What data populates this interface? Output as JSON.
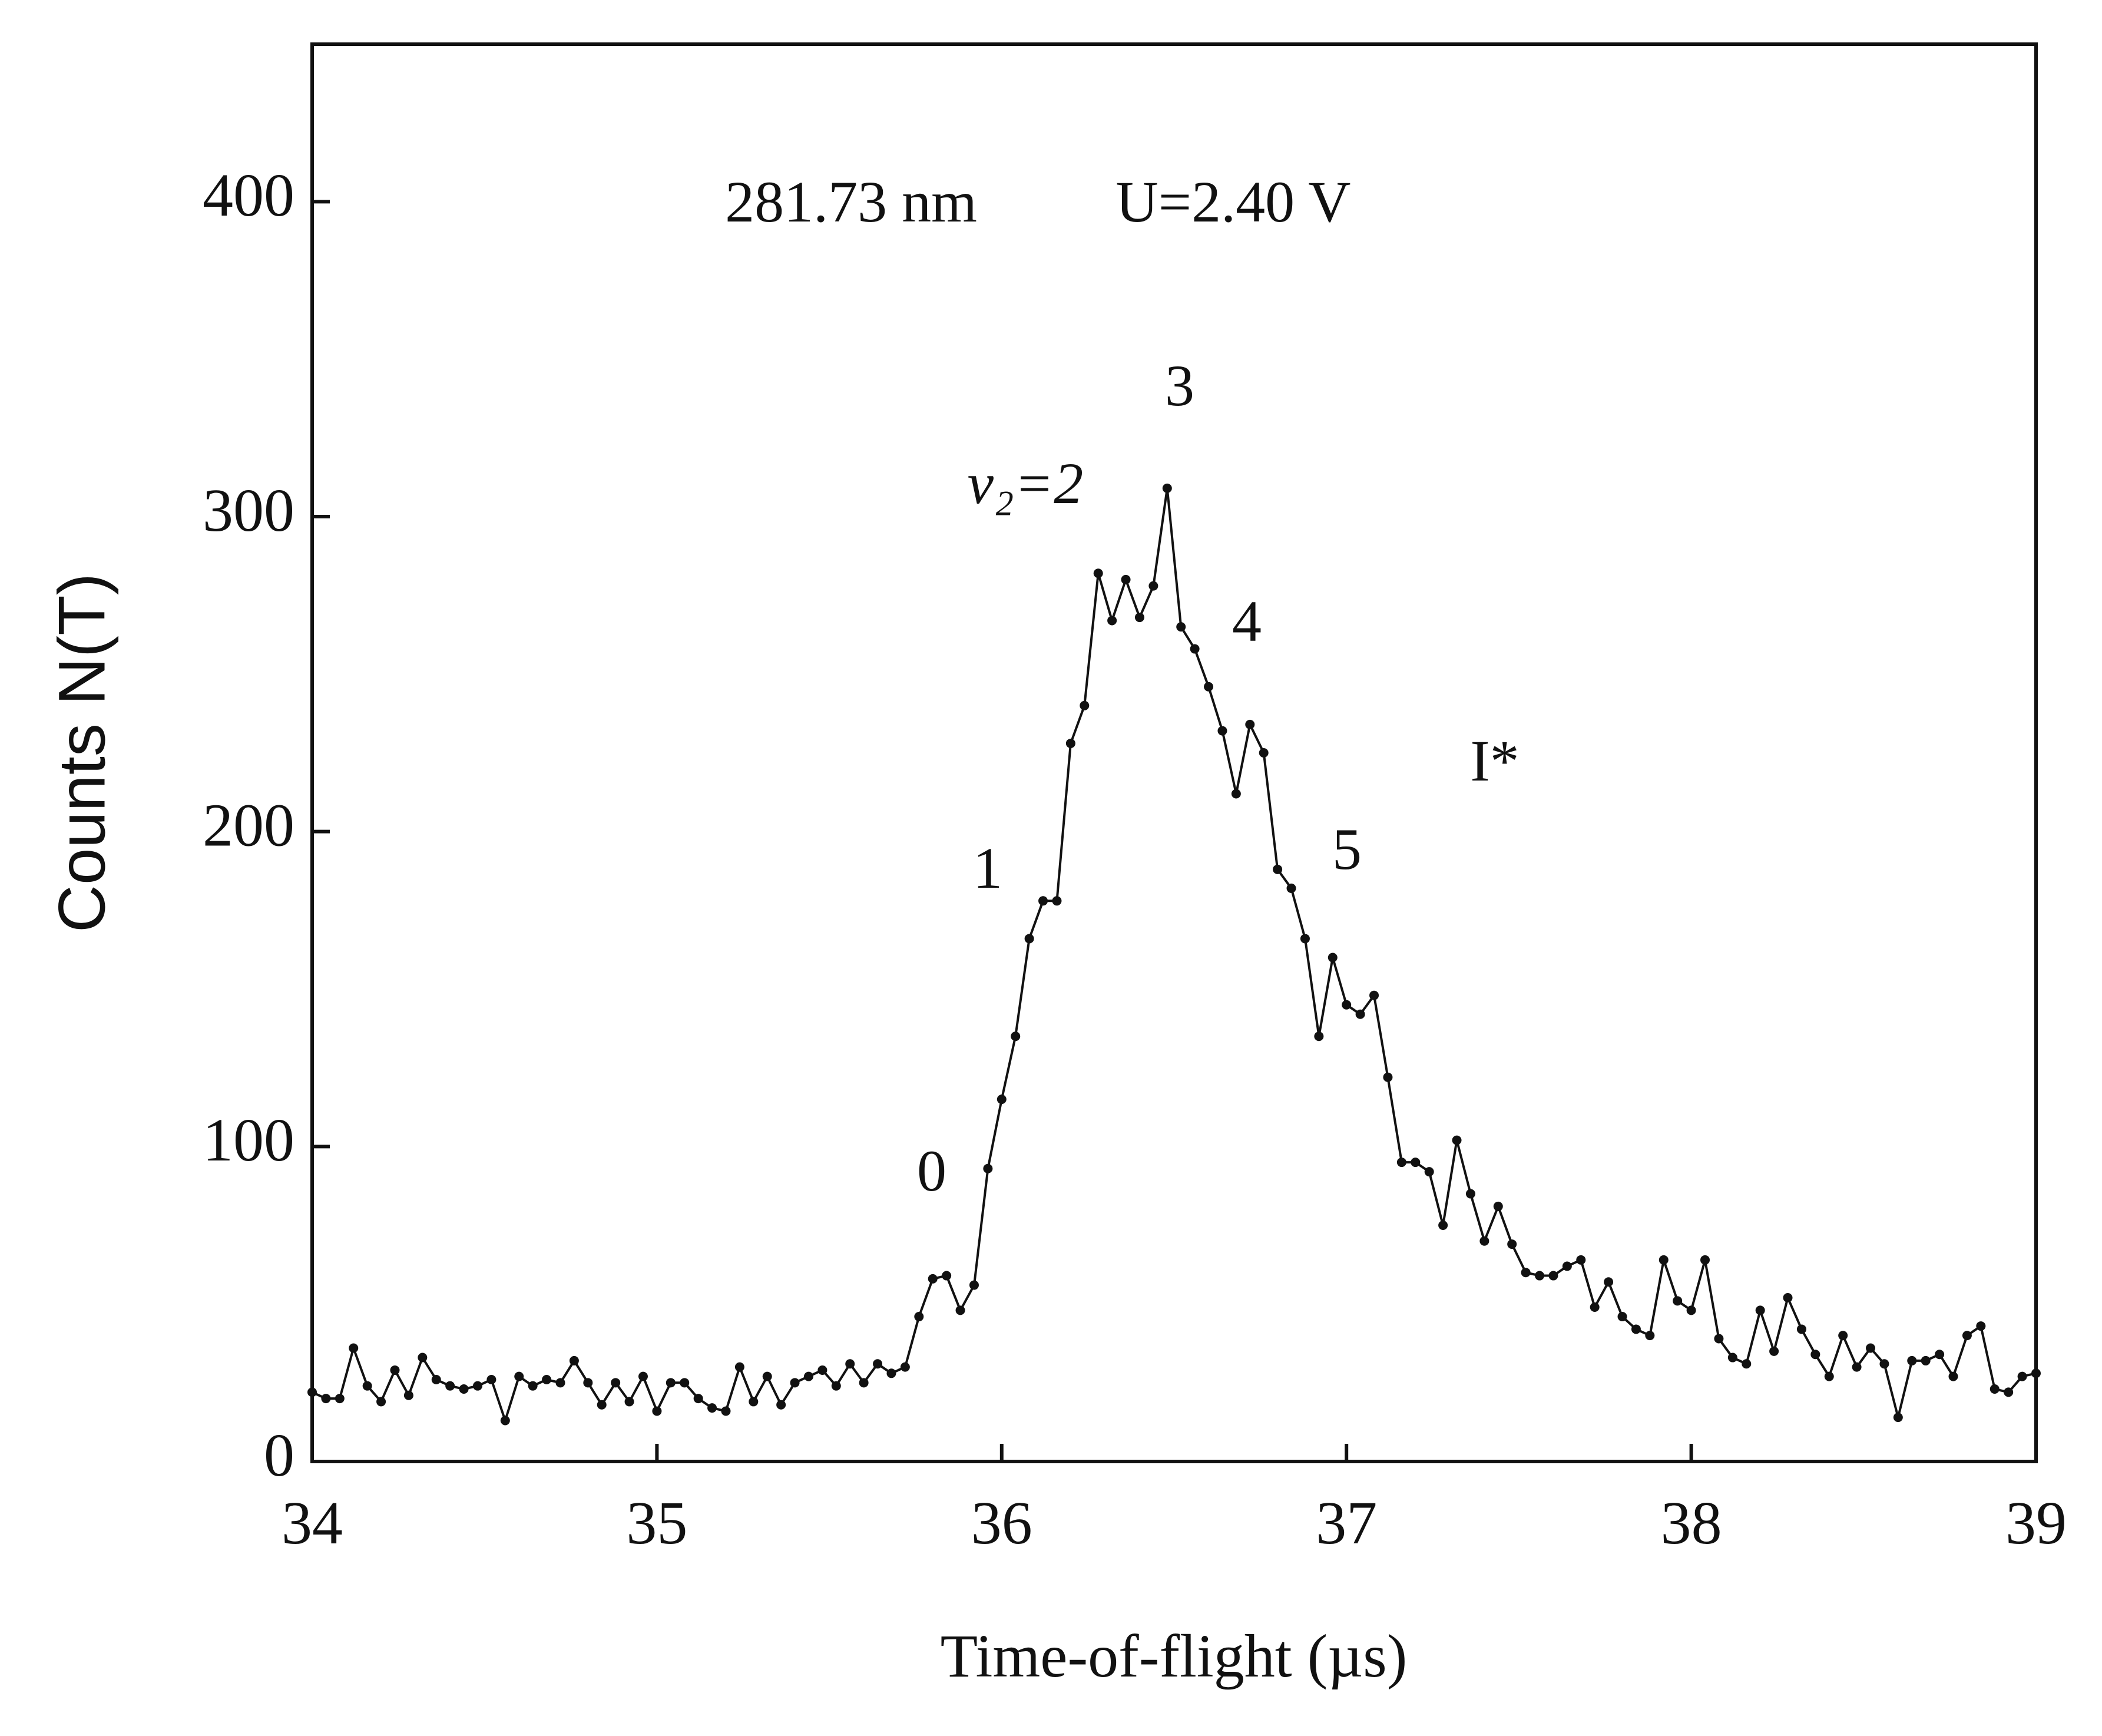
{
  "chart_data": {
    "type": "line",
    "xlabel": "Time-of-flight (µs)",
    "ylabel": "Counts  N(T)",
    "xlim": [
      34,
      39
    ],
    "ylim": [
      0,
      450
    ],
    "xticks": [
      34,
      35,
      36,
      37,
      38,
      39
    ],
    "yticks": [
      0,
      100,
      200,
      300,
      400
    ],
    "color": "#111111",
    "annotations": [
      "281.73 nm",
      "U=2.40 V",
      "v₂=2",
      "0",
      "1",
      "3",
      "4",
      "5",
      "I*"
    ],
    "x": [
      34.0,
      34.04,
      34.08,
      34.12,
      34.16,
      34.2,
      34.24,
      34.28,
      34.32,
      34.36,
      34.4,
      34.44,
      34.48,
      34.52,
      34.56,
      34.6,
      34.64,
      34.68,
      34.72,
      34.76,
      34.8,
      34.84,
      34.88,
      34.92,
      34.96,
      35.0,
      35.04,
      35.08,
      35.12,
      35.16,
      35.2,
      35.24,
      35.28,
      35.32,
      35.36,
      35.4,
      35.44,
      35.48,
      35.52,
      35.56,
      35.6,
      35.64,
      35.68,
      35.72,
      35.76,
      35.8,
      35.84,
      35.88,
      35.92,
      35.96,
      36.0,
      36.04,
      36.08,
      36.12,
      36.16,
      36.2,
      36.24,
      36.28,
      36.32,
      36.36,
      36.4,
      36.44,
      36.48,
      36.52,
      36.56,
      36.6,
      36.64,
      36.68,
      36.72,
      36.76,
      36.8,
      36.84,
      36.88,
      36.92,
      36.96,
      37.0,
      37.04,
      37.08,
      37.12,
      37.16,
      37.2,
      37.24,
      37.28,
      37.32,
      37.36,
      37.4,
      37.44,
      37.48,
      37.52,
      37.56,
      37.6,
      37.64,
      37.68,
      37.72,
      37.76,
      37.8,
      37.84,
      37.88,
      37.92,
      37.96,
      38.0,
      38.04,
      38.08,
      38.12,
      38.16,
      38.2,
      38.24,
      38.28,
      38.32,
      38.36,
      38.4,
      38.44,
      38.48,
      38.52,
      38.56,
      38.6,
      38.64,
      38.68,
      38.72,
      38.76,
      38.8,
      38.84,
      38.88,
      38.92,
      38.96,
      39.0
    ],
    "values": [
      22,
      20,
      20,
      36,
      24,
      19,
      29,
      21,
      33,
      26,
      24,
      23,
      24,
      26,
      13,
      27,
      24,
      26,
      25,
      32,
      25,
      18,
      25,
      19,
      27,
      16,
      25,
      25,
      20,
      17,
      16,
      30,
      19,
      27,
      18,
      25,
      27,
      29,
      24,
      31,
      25,
      31,
      28,
      30,
      46,
      58,
      59,
      48,
      56,
      93,
      115,
      135,
      166,
      178,
      178,
      228,
      240,
      282,
      267,
      280,
      268,
      278,
      309,
      265,
      258,
      246,
      232,
      212,
      234,
      225,
      188,
      182,
      166,
      135,
      160,
      145,
      142,
      148,
      122,
      95,
      95,
      92,
      75,
      102,
      85,
      70,
      81,
      69,
      60,
      59,
      59,
      62,
      64,
      49,
      57,
      46,
      42,
      40,
      64,
      51,
      48,
      64,
      39,
      33,
      31,
      48,
      35,
      52,
      42,
      34,
      27,
      40,
      30,
      36,
      31,
      14,
      32,
      32,
      34,
      27,
      40,
      43,
      23,
      22,
      27,
      28
    ]
  }
}
